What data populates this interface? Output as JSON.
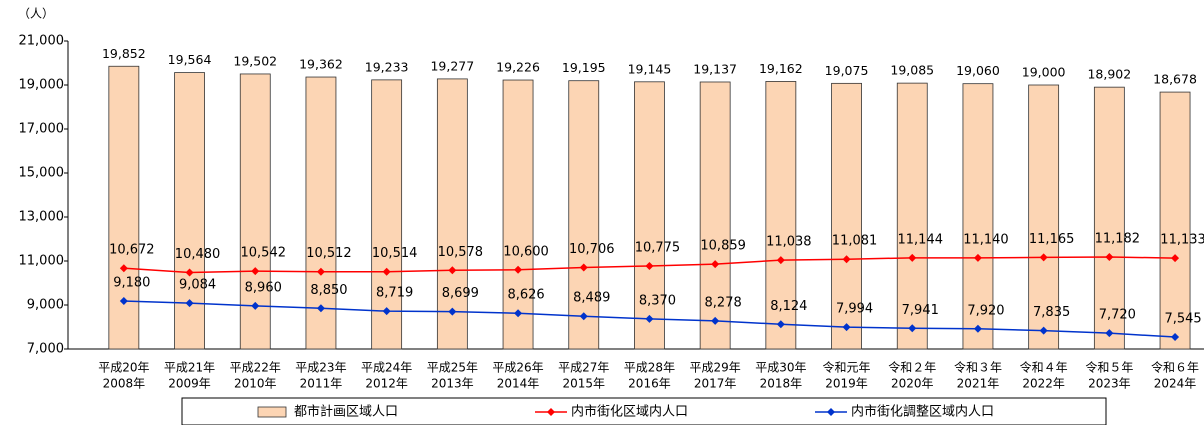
{
  "chart_data": {
    "type": "bar_line",
    "unit_label": "（人）",
    "categories": [
      [
        "平成20年",
        "2008年"
      ],
      [
        "平成21年",
        "2009年"
      ],
      [
        "平成22年",
        "2010年"
      ],
      [
        "平成23年",
        "2011年"
      ],
      [
        "平成24年",
        "2012年"
      ],
      [
        "平成25年",
        "2013年"
      ],
      [
        "平成26年",
        "2014年"
      ],
      [
        "平成27年",
        "2015年"
      ],
      [
        "平成28年",
        "2016年"
      ],
      [
        "平成29年",
        "2017年"
      ],
      [
        "平成30年",
        "2018年"
      ],
      [
        "令和元年",
        "2019年"
      ],
      [
        "令和２年",
        "2020年"
      ],
      [
        "令和３年",
        "2021年"
      ],
      [
        "令和４年",
        "2022年"
      ],
      [
        "令和５年",
        "2023年"
      ],
      [
        "令和６年",
        "2024年"
      ]
    ],
    "series": [
      {
        "name": "都市計画区域人口",
        "type": "bar",
        "color": "#fcd5b4",
        "values": [
          19852,
          19564,
          19502,
          19362,
          19233,
          19277,
          19226,
          19195,
          19145,
          19137,
          19162,
          19075,
          19085,
          19060,
          19000,
          18902,
          18678
        ],
        "value_labels": [
          "19,852",
          "19,564",
          "19,502",
          "19,362",
          "19,233",
          "19,277",
          "19,226",
          "19,195",
          "19,145",
          "19,137",
          "19,162",
          "19,075",
          "19,085",
          "19,060",
          "19,000",
          "18,902",
          "18,678"
        ]
      },
      {
        "name": "内市街化区域内人口",
        "type": "line",
        "color": "#ff0000",
        "values": [
          10672,
          10480,
          10542,
          10512,
          10514,
          10578,
          10600,
          10706,
          10775,
          10859,
          11038,
          11081,
          11144,
          11140,
          11165,
          11182,
          11133
        ],
        "value_labels": [
          "10,672",
          "10,480",
          "10,542",
          "10,512",
          "10,514",
          "10,578",
          "10,600",
          "10,706",
          "10,775",
          "10,859",
          "11,038",
          "11,081",
          "11,144",
          "11,140",
          "11,165",
          "11,182",
          "11,133"
        ]
      },
      {
        "name": "内市街化調整区域内人口",
        "type": "line",
        "color": "#0033cc",
        "values": [
          9180,
          9084,
          8960,
          8850,
          8719,
          8699,
          8626,
          8489,
          8370,
          8278,
          8124,
          7994,
          7941,
          7920,
          7835,
          7720,
          7545
        ],
        "value_labels": [
          "9,180",
          "9,084",
          "8,960",
          "8,850",
          "8,719",
          "8,699",
          "8,626",
          "8,489",
          "8,370",
          "8,278",
          "8,124",
          "7,994",
          "7,941",
          "7,920",
          "7,835",
          "7,720",
          "7,545"
        ]
      }
    ],
    "ylim": [
      7000,
      21000
    ],
    "yticks": [
      {
        "value": 7000,
        "label": "7,000"
      },
      {
        "value": 9000,
        "label": "9,000"
      },
      {
        "value": 11000,
        "label": "11,000"
      },
      {
        "value": 13000,
        "label": "13,000"
      },
      {
        "value": 15000,
        "label": "15,000"
      },
      {
        "value": 17000,
        "label": "17,000"
      },
      {
        "value": 19000,
        "label": "19,000"
      },
      {
        "value": 21000,
        "label": "21,000"
      }
    ],
    "grid": false
  }
}
